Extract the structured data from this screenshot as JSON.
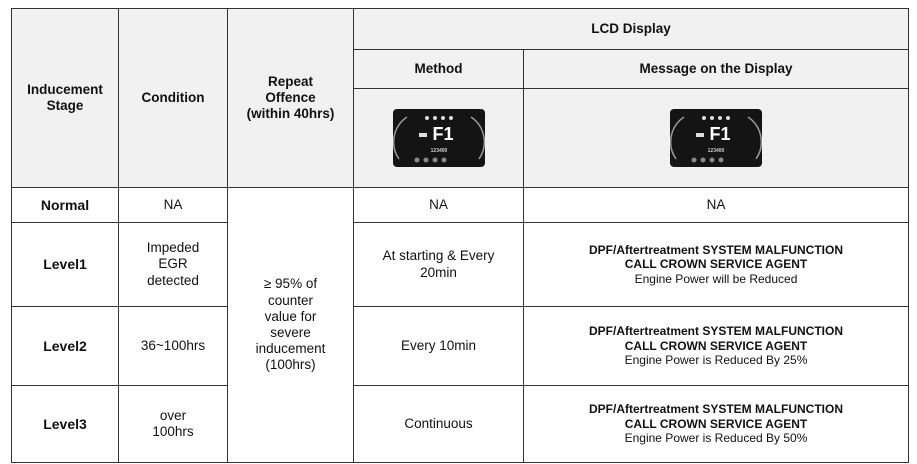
{
  "table": {
    "header": {
      "inducement_stage": [
        "Inducement",
        "Stage"
      ],
      "condition": "Condition",
      "repeat_offence": [
        "Repeat",
        "Offence",
        "(within 40hrs)"
      ],
      "lcd_display": "LCD Display",
      "method": "Method",
      "message": "Message on the Display"
    },
    "images": [
      {
        "code": "F1",
        "odometer": "123400"
      },
      {
        "code": "F1",
        "odometer": "123400"
      }
    ],
    "repeat_offence_value": [
      "≥ 95% of",
      "counter",
      "value for",
      "severe",
      "inducement",
      "(100hrs)"
    ],
    "rows": [
      {
        "stage": "Normal",
        "condition": [
          "NA"
        ],
        "method": [
          "NA"
        ],
        "message": [
          "NA"
        ]
      },
      {
        "stage": "Level1",
        "condition": [
          "Impeded",
          "EGR",
          "detected"
        ],
        "method": [
          "At starting & Every",
          "20min"
        ],
        "message": [
          "DPF/Aftertreatment SYSTEM MALFUNCTION",
          "CALL CROWN SERVICE AGENT",
          "Engine Power will be Reduced"
        ]
      },
      {
        "stage": "Level2",
        "condition": [
          "36~100hrs"
        ],
        "method": [
          "Every 10min"
        ],
        "message": [
          "DPF/Aftertreatment SYSTEM MALFUNCTION",
          "CALL CROWN SERVICE AGENT",
          "Engine Power is Reduced By 25%"
        ]
      },
      {
        "stage": "Level3",
        "condition": [
          "over",
          "100hrs"
        ],
        "method": [
          "Continuous"
        ],
        "message": [
          "DPF/Aftertreatment SYSTEM MALFUNCTION",
          "CALL CROWN SERVICE AGENT",
          "Engine Power is Reduced By 50%"
        ]
      }
    ]
  }
}
